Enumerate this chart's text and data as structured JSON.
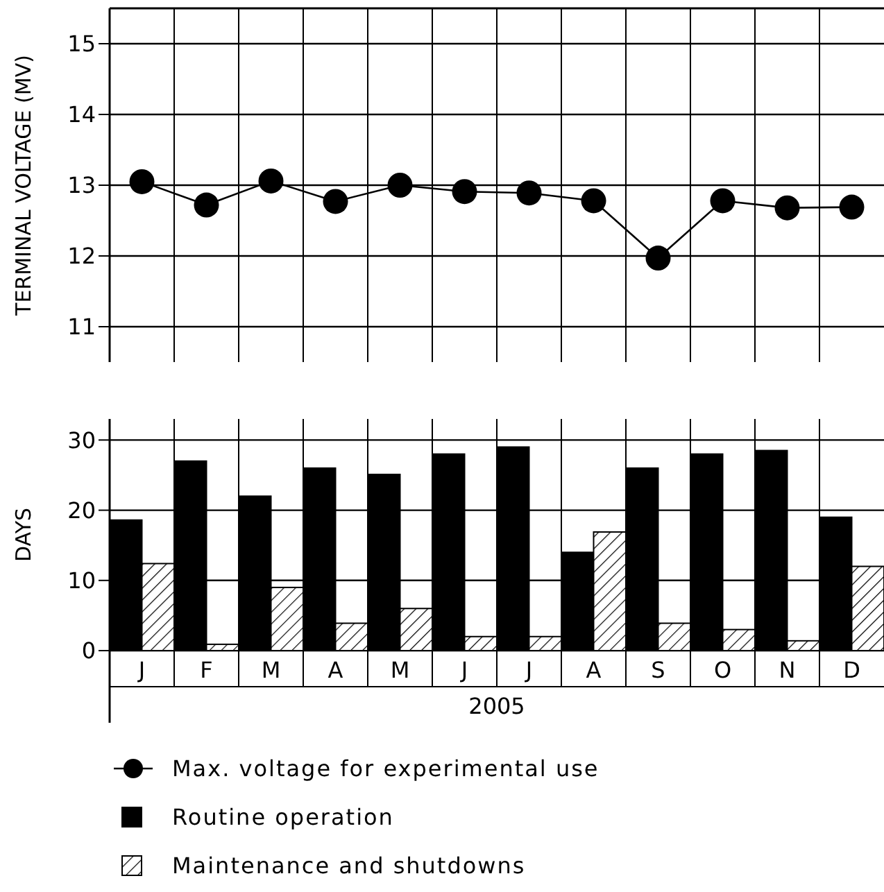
{
  "chart_data": [
    {
      "type": "line",
      "ylabel": "TERMINAL VOLTAGE (MV)",
      "categories": [
        null,
        null,
        null,
        null,
        null,
        null,
        null,
        null,
        null,
        null,
        null,
        null
      ],
      "series": [
        {
          "name": "Max. voltage for experimental use",
          "color": "#000000",
          "values": [
            13.05,
            12.72,
            13.06,
            12.77,
            13.0,
            12.91,
            12.89,
            12.78,
            11.97,
            12.78,
            12.68,
            12.69
          ]
        }
      ],
      "ylim": [
        10.5,
        15.5
      ],
      "yticks": [
        11,
        12,
        13,
        14,
        15
      ],
      "grid": true,
      "marker": "circle",
      "line_style": "solid",
      "legend": "bottom",
      "tick_labels": "y"
    },
    {
      "type": "bar",
      "ylabel": "DAYS",
      "xlabel": "2005",
      "categories": [
        "J",
        "F",
        "M",
        "A",
        "M",
        "J",
        "J",
        "A",
        "S",
        "O",
        "N",
        "D"
      ],
      "series": [
        {
          "name": "Routine operation",
          "color": "#000000",
          "values": [
            18.6,
            27,
            22,
            26,
            25.1,
            28,
            29,
            14,
            26,
            28,
            28.5,
            19
          ]
        },
        {
          "name": "Maintenance and shutdowns",
          "color": "#000000",
          "values": [
            12.4,
            0.9,
            9,
            3.9,
            6,
            2,
            2,
            16.9,
            3.9,
            3,
            1.4,
            12
          ]
        }
      ],
      "ylim": [
        0,
        33
      ],
      "yticks": [
        0,
        10,
        20,
        30
      ],
      "grid": true,
      "legend": "bottom"
    }
  ]
}
